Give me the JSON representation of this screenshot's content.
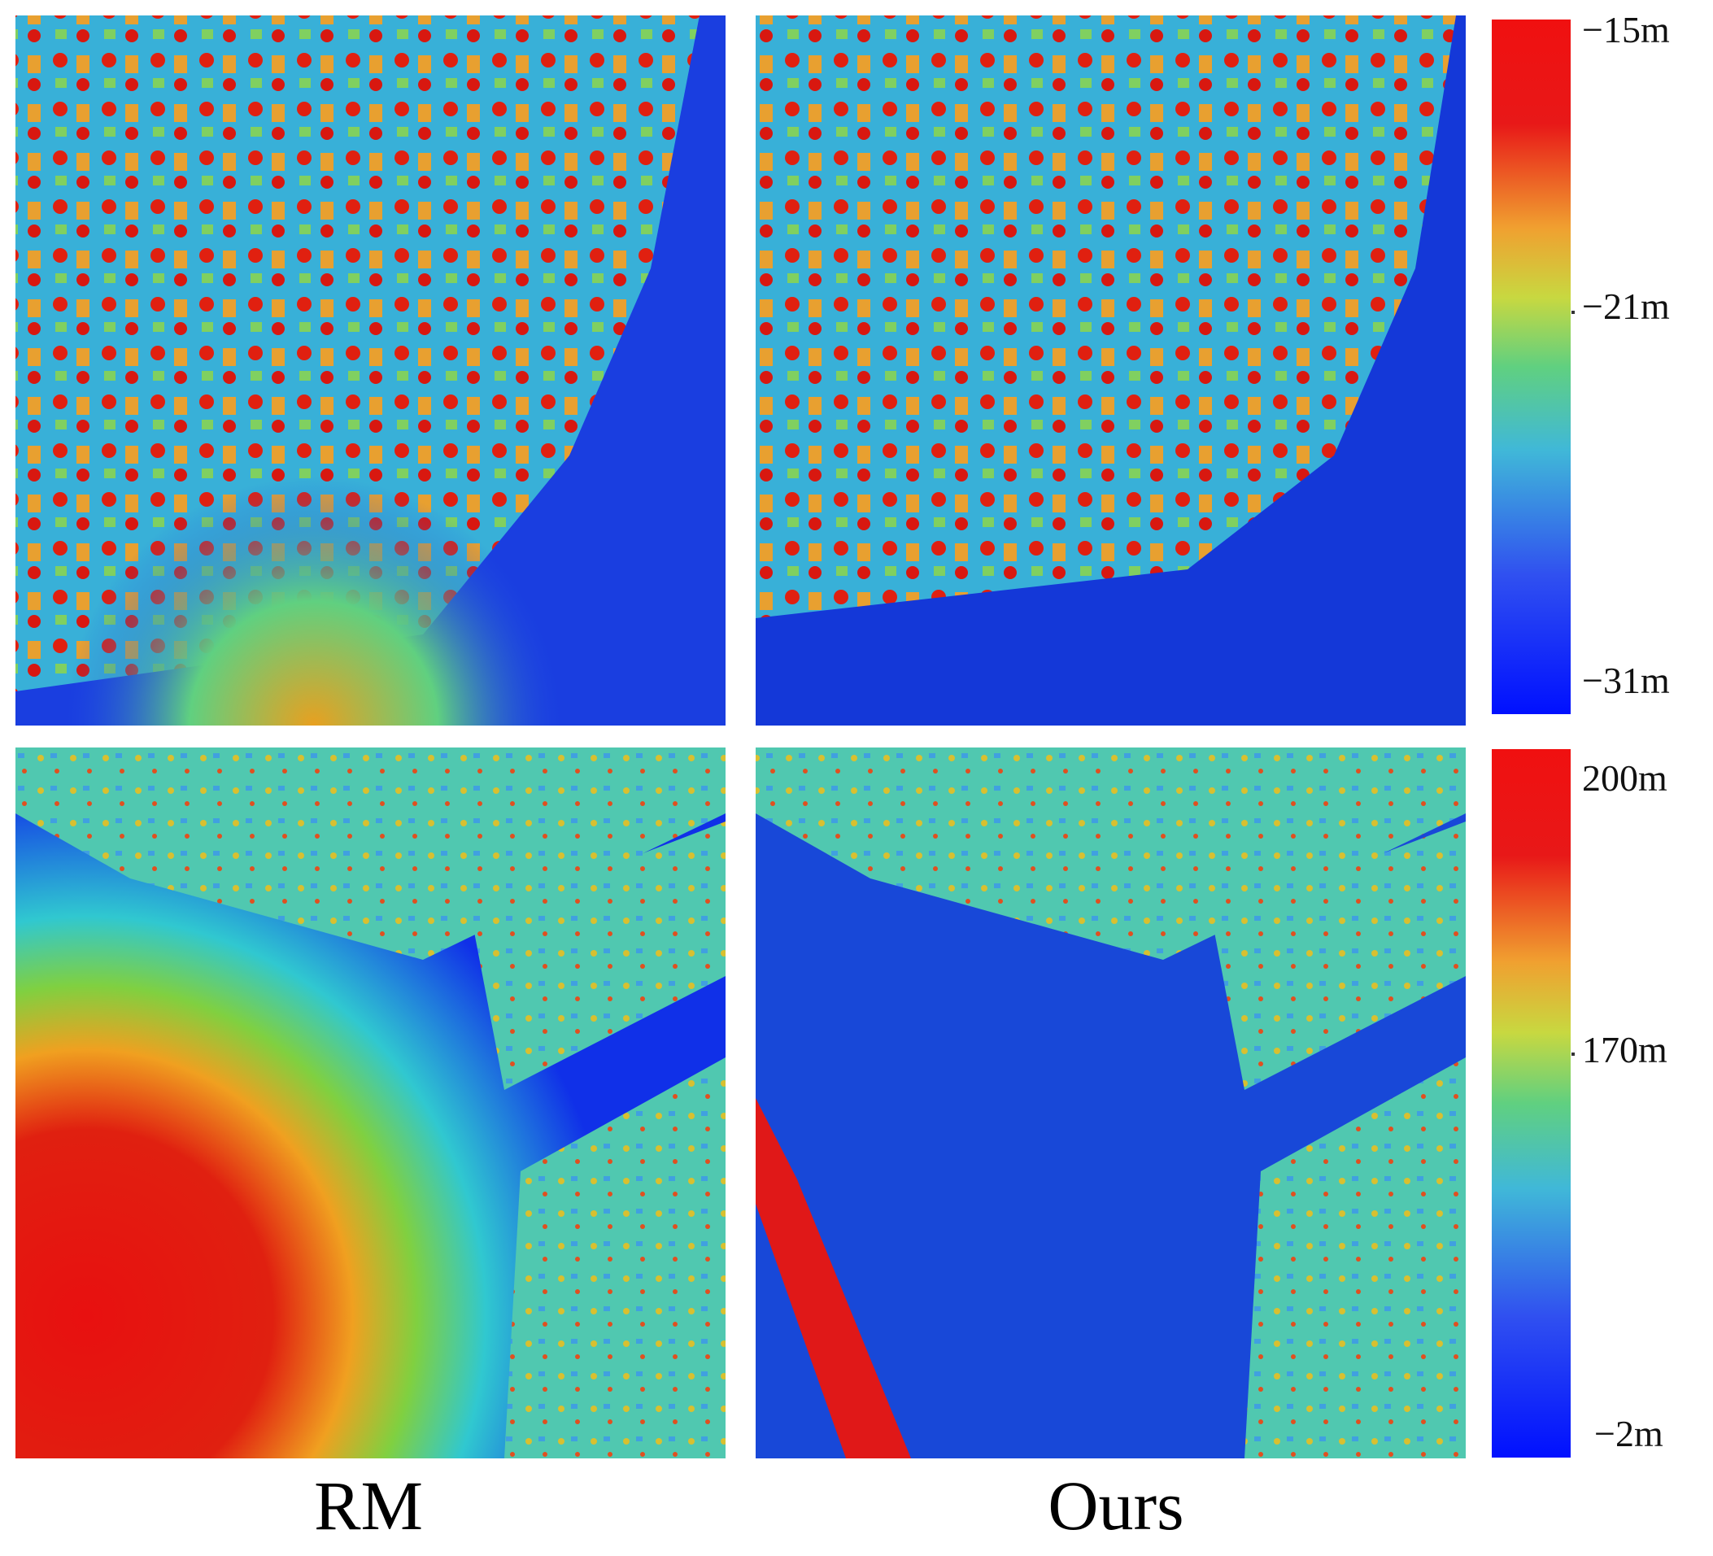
{
  "colorbars": [
    {
      "labels": [
        "−15m",
        "−21m",
        "−31m"
      ]
    },
    {
      "labels": [
        "200m",
        "170m",
        "−2m"
      ]
    }
  ],
  "captions": [
    "RM",
    "Ours"
  ]
}
